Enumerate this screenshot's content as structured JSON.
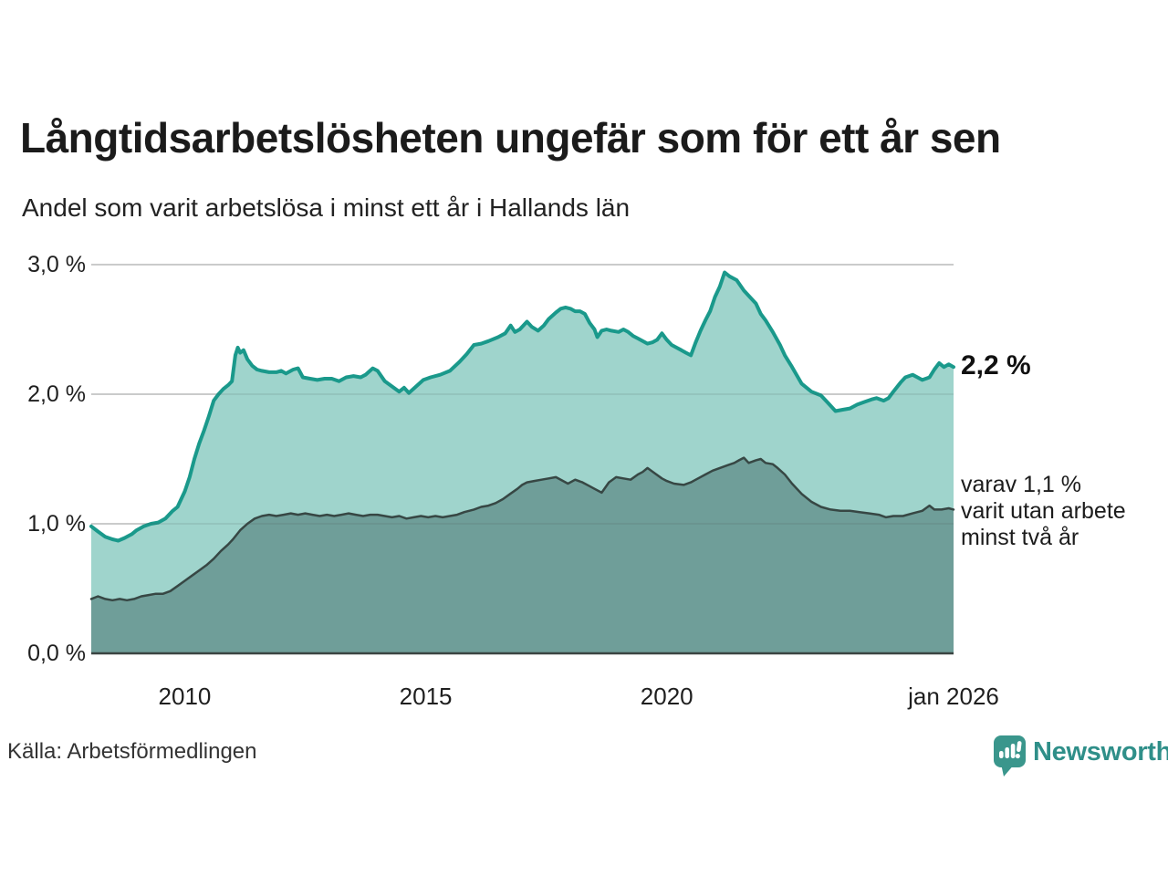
{
  "chart_data": {
    "type": "area",
    "title": "Långtidsarbetslösheten ungefär som för ett år sen",
    "subtitle": "Andel som varit arbetslösa i minst ett år i Hallands län",
    "source": "Källa: Arbetsförmedlingen",
    "grid": true,
    "legend_position": "right-annotations",
    "x_axis": {
      "min": 2008.06,
      "max": 2025.95,
      "ticks": [
        {
          "value": 2010,
          "label": "2010"
        },
        {
          "value": 2015,
          "label": "2015"
        },
        {
          "value": 2020,
          "label": "2020"
        },
        {
          "value": 2025.95,
          "label": "jan 2026"
        }
      ]
    },
    "y_axis": {
      "min": 0,
      "max": 3,
      "ticks": [
        {
          "value": 0,
          "label": "0,0 %"
        },
        {
          "value": 1,
          "label": "1,0 %"
        },
        {
          "value": 2,
          "label": "2,0 %"
        },
        {
          "value": 3,
          "label": "3,0 %"
        }
      ]
    },
    "annotations": {
      "end_label": "2,2 %",
      "end_value": 2.21,
      "secondary_label": "varav 1,1 %\nvarit utan arbete\nminst två år",
      "secondary_value": 1.1
    },
    "series": [
      {
        "name": "Andel arbetslösa minst ett år",
        "line_color": "#1a998b",
        "fill_color": "#9fd4cc",
        "line_width": 4,
        "values": [
          [
            2008.06,
            0.98
          ],
          [
            2008.2,
            0.94
          ],
          [
            2008.35,
            0.9
          ],
          [
            2008.5,
            0.88
          ],
          [
            2008.62,
            0.87
          ],
          [
            2008.75,
            0.89
          ],
          [
            2008.9,
            0.92
          ],
          [
            2009.0,
            0.95
          ],
          [
            2009.15,
            0.98
          ],
          [
            2009.3,
            1.0
          ],
          [
            2009.45,
            1.01
          ],
          [
            2009.6,
            1.04
          ],
          [
            2009.75,
            1.1
          ],
          [
            2009.85,
            1.13
          ],
          [
            2010.0,
            1.25
          ],
          [
            2010.1,
            1.36
          ],
          [
            2010.2,
            1.5
          ],
          [
            2010.3,
            1.62
          ],
          [
            2010.4,
            1.72
          ],
          [
            2010.5,
            1.83
          ],
          [
            2010.6,
            1.95
          ],
          [
            2010.7,
            2.0
          ],
          [
            2010.8,
            2.04
          ],
          [
            2010.9,
            2.07
          ],
          [
            2010.98,
            2.1
          ],
          [
            2011.05,
            2.3
          ],
          [
            2011.1,
            2.36
          ],
          [
            2011.15,
            2.32
          ],
          [
            2011.22,
            2.34
          ],
          [
            2011.3,
            2.27
          ],
          [
            2011.4,
            2.22
          ],
          [
            2011.5,
            2.19
          ],
          [
            2011.6,
            2.18
          ],
          [
            2011.75,
            2.17
          ],
          [
            2011.9,
            2.17
          ],
          [
            2012.0,
            2.18
          ],
          [
            2012.1,
            2.16
          ],
          [
            2012.25,
            2.19
          ],
          [
            2012.35,
            2.2
          ],
          [
            2012.45,
            2.13
          ],
          [
            2012.6,
            2.12
          ],
          [
            2012.75,
            2.11
          ],
          [
            2012.9,
            2.12
          ],
          [
            2013.05,
            2.12
          ],
          [
            2013.2,
            2.1
          ],
          [
            2013.35,
            2.13
          ],
          [
            2013.5,
            2.14
          ],
          [
            2013.65,
            2.13
          ],
          [
            2013.75,
            2.15
          ],
          [
            2013.9,
            2.2
          ],
          [
            2014.0,
            2.18
          ],
          [
            2014.15,
            2.1
          ],
          [
            2014.3,
            2.06
          ],
          [
            2014.45,
            2.02
          ],
          [
            2014.55,
            2.05
          ],
          [
            2014.65,
            2.01
          ],
          [
            2014.8,
            2.06
          ],
          [
            2014.95,
            2.11
          ],
          [
            2015.1,
            2.13
          ],
          [
            2015.3,
            2.15
          ],
          [
            2015.5,
            2.18
          ],
          [
            2015.7,
            2.25
          ],
          [
            2015.85,
            2.31
          ],
          [
            2016.0,
            2.38
          ],
          [
            2016.15,
            2.39
          ],
          [
            2016.3,
            2.41
          ],
          [
            2016.5,
            2.44
          ],
          [
            2016.65,
            2.47
          ],
          [
            2016.76,
            2.53
          ],
          [
            2016.85,
            2.48
          ],
          [
            2016.95,
            2.5
          ],
          [
            2017.1,
            2.56
          ],
          [
            2017.2,
            2.52
          ],
          [
            2017.33,
            2.49
          ],
          [
            2017.45,
            2.53
          ],
          [
            2017.55,
            2.58
          ],
          [
            2017.7,
            2.63
          ],
          [
            2017.8,
            2.66
          ],
          [
            2017.9,
            2.67
          ],
          [
            2018.0,
            2.66
          ],
          [
            2018.1,
            2.64
          ],
          [
            2018.2,
            2.64
          ],
          [
            2018.3,
            2.62
          ],
          [
            2018.4,
            2.55
          ],
          [
            2018.5,
            2.5
          ],
          [
            2018.56,
            2.44
          ],
          [
            2018.65,
            2.49
          ],
          [
            2018.75,
            2.5
          ],
          [
            2018.85,
            2.49
          ],
          [
            2019.0,
            2.48
          ],
          [
            2019.1,
            2.5
          ],
          [
            2019.2,
            2.48
          ],
          [
            2019.3,
            2.45
          ],
          [
            2019.4,
            2.43
          ],
          [
            2019.5,
            2.41
          ],
          [
            2019.6,
            2.39
          ],
          [
            2019.7,
            2.4
          ],
          [
            2019.8,
            2.42
          ],
          [
            2019.9,
            2.47
          ],
          [
            2020.0,
            2.42
          ],
          [
            2020.1,
            2.38
          ],
          [
            2020.2,
            2.36
          ],
          [
            2020.3,
            2.34
          ],
          [
            2020.4,
            2.32
          ],
          [
            2020.5,
            2.3
          ],
          [
            2020.6,
            2.4
          ],
          [
            2020.7,
            2.49
          ],
          [
            2020.8,
            2.57
          ],
          [
            2020.9,
            2.64
          ],
          [
            2021.0,
            2.75
          ],
          [
            2021.1,
            2.83
          ],
          [
            2021.2,
            2.94
          ],
          [
            2021.3,
            2.91
          ],
          [
            2021.45,
            2.88
          ],
          [
            2021.6,
            2.8
          ],
          [
            2021.7,
            2.76
          ],
          [
            2021.85,
            2.7
          ],
          [
            2021.95,
            2.62
          ],
          [
            2022.05,
            2.57
          ],
          [
            2022.2,
            2.48
          ],
          [
            2022.35,
            2.38
          ],
          [
            2022.45,
            2.3
          ],
          [
            2022.6,
            2.21
          ],
          [
            2022.8,
            2.08
          ],
          [
            2023.0,
            2.02
          ],
          [
            2023.2,
            1.99
          ],
          [
            2023.35,
            1.93
          ],
          [
            2023.5,
            1.87
          ],
          [
            2023.65,
            1.88
          ],
          [
            2023.8,
            1.89
          ],
          [
            2023.95,
            1.92
          ],
          [
            2024.1,
            1.94
          ],
          [
            2024.25,
            1.96
          ],
          [
            2024.35,
            1.97
          ],
          [
            2024.5,
            1.95
          ],
          [
            2024.6,
            1.97
          ],
          [
            2024.7,
            2.02
          ],
          [
            2024.85,
            2.09
          ],
          [
            2024.95,
            2.13
          ],
          [
            2025.1,
            2.15
          ],
          [
            2025.2,
            2.13
          ],
          [
            2025.3,
            2.11
          ],
          [
            2025.45,
            2.13
          ],
          [
            2025.55,
            2.19
          ],
          [
            2025.65,
            2.24
          ],
          [
            2025.75,
            2.21
          ],
          [
            2025.85,
            2.23
          ],
          [
            2025.95,
            2.21
          ]
        ]
      },
      {
        "name": "varav utan arbete minst två år",
        "line_color": "#374744",
        "fill_color": "#6f9e99",
        "line_width": 2.5,
        "values": [
          [
            2008.06,
            0.42
          ],
          [
            2008.2,
            0.44
          ],
          [
            2008.35,
            0.42
          ],
          [
            2008.5,
            0.41
          ],
          [
            2008.65,
            0.42
          ],
          [
            2008.8,
            0.41
          ],
          [
            2008.95,
            0.42
          ],
          [
            2009.1,
            0.44
          ],
          [
            2009.25,
            0.45
          ],
          [
            2009.4,
            0.46
          ],
          [
            2009.55,
            0.46
          ],
          [
            2009.7,
            0.48
          ],
          [
            2009.85,
            0.52
          ],
          [
            2010.0,
            0.56
          ],
          [
            2010.15,
            0.6
          ],
          [
            2010.3,
            0.64
          ],
          [
            2010.45,
            0.68
          ],
          [
            2010.6,
            0.73
          ],
          [
            2010.75,
            0.79
          ],
          [
            2010.9,
            0.84
          ],
          [
            2011.0,
            0.88
          ],
          [
            2011.15,
            0.95
          ],
          [
            2011.3,
            1.0
          ],
          [
            2011.45,
            1.04
          ],
          [
            2011.6,
            1.06
          ],
          [
            2011.75,
            1.07
          ],
          [
            2011.9,
            1.06
          ],
          [
            2012.05,
            1.07
          ],
          [
            2012.2,
            1.08
          ],
          [
            2012.35,
            1.07
          ],
          [
            2012.5,
            1.08
          ],
          [
            2012.65,
            1.07
          ],
          [
            2012.8,
            1.06
          ],
          [
            2012.95,
            1.07
          ],
          [
            2013.1,
            1.06
          ],
          [
            2013.25,
            1.07
          ],
          [
            2013.4,
            1.08
          ],
          [
            2013.55,
            1.07
          ],
          [
            2013.7,
            1.06
          ],
          [
            2013.85,
            1.07
          ],
          [
            2014.0,
            1.07
          ],
          [
            2014.15,
            1.06
          ],
          [
            2014.3,
            1.05
          ],
          [
            2014.45,
            1.06
          ],
          [
            2014.6,
            1.04
          ],
          [
            2014.75,
            1.05
          ],
          [
            2014.9,
            1.06
          ],
          [
            2015.05,
            1.05
          ],
          [
            2015.2,
            1.06
          ],
          [
            2015.35,
            1.05
          ],
          [
            2015.5,
            1.06
          ],
          [
            2015.65,
            1.07
          ],
          [
            2015.8,
            1.09
          ],
          [
            2016.0,
            1.11
          ],
          [
            2016.15,
            1.13
          ],
          [
            2016.3,
            1.14
          ],
          [
            2016.45,
            1.16
          ],
          [
            2016.6,
            1.19
          ],
          [
            2016.75,
            1.23
          ],
          [
            2016.9,
            1.27
          ],
          [
            2017.0,
            1.3
          ],
          [
            2017.1,
            1.32
          ],
          [
            2017.25,
            1.33
          ],
          [
            2017.4,
            1.34
          ],
          [
            2017.55,
            1.35
          ],
          [
            2017.7,
            1.36
          ],
          [
            2017.85,
            1.33
          ],
          [
            2017.95,
            1.31
          ],
          [
            2018.1,
            1.34
          ],
          [
            2018.25,
            1.32
          ],
          [
            2018.4,
            1.29
          ],
          [
            2018.5,
            1.27
          ],
          [
            2018.65,
            1.24
          ],
          [
            2018.8,
            1.32
          ],
          [
            2018.95,
            1.36
          ],
          [
            2019.1,
            1.35
          ],
          [
            2019.25,
            1.34
          ],
          [
            2019.4,
            1.38
          ],
          [
            2019.5,
            1.4
          ],
          [
            2019.6,
            1.43
          ],
          [
            2019.75,
            1.39
          ],
          [
            2019.9,
            1.35
          ],
          [
            2020.0,
            1.33
          ],
          [
            2020.15,
            1.31
          ],
          [
            2020.35,
            1.3
          ],
          [
            2020.5,
            1.32
          ],
          [
            2020.65,
            1.35
          ],
          [
            2020.8,
            1.38
          ],
          [
            2020.95,
            1.41
          ],
          [
            2021.1,
            1.43
          ],
          [
            2021.25,
            1.45
          ],
          [
            2021.4,
            1.47
          ],
          [
            2021.5,
            1.49
          ],
          [
            2021.6,
            1.51
          ],
          [
            2021.7,
            1.47
          ],
          [
            2021.85,
            1.49
          ],
          [
            2021.95,
            1.5
          ],
          [
            2022.05,
            1.47
          ],
          [
            2022.2,
            1.46
          ],
          [
            2022.3,
            1.43
          ],
          [
            2022.45,
            1.38
          ],
          [
            2022.6,
            1.31
          ],
          [
            2022.8,
            1.23
          ],
          [
            2023.0,
            1.17
          ],
          [
            2023.2,
            1.13
          ],
          [
            2023.4,
            1.11
          ],
          [
            2023.6,
            1.1
          ],
          [
            2023.8,
            1.1
          ],
          [
            2024.0,
            1.09
          ],
          [
            2024.2,
            1.08
          ],
          [
            2024.4,
            1.07
          ],
          [
            2024.55,
            1.05
          ],
          [
            2024.7,
            1.06
          ],
          [
            2024.9,
            1.06
          ],
          [
            2025.1,
            1.08
          ],
          [
            2025.3,
            1.1
          ],
          [
            2025.45,
            1.14
          ],
          [
            2025.55,
            1.11
          ],
          [
            2025.7,
            1.11
          ],
          [
            2025.85,
            1.12
          ],
          [
            2025.95,
            1.11
          ]
        ]
      }
    ],
    "colors": {
      "gridline": "#dcdcdc",
      "axis_line": "#3a4442",
      "text": "#1f1f1f"
    }
  },
  "brand": {
    "name": "Newsworthy",
    "icon": "newsworthy-speech-bubble-bars-icon",
    "text_color": "#2f8f89",
    "badge_color": "#3a968c"
  }
}
